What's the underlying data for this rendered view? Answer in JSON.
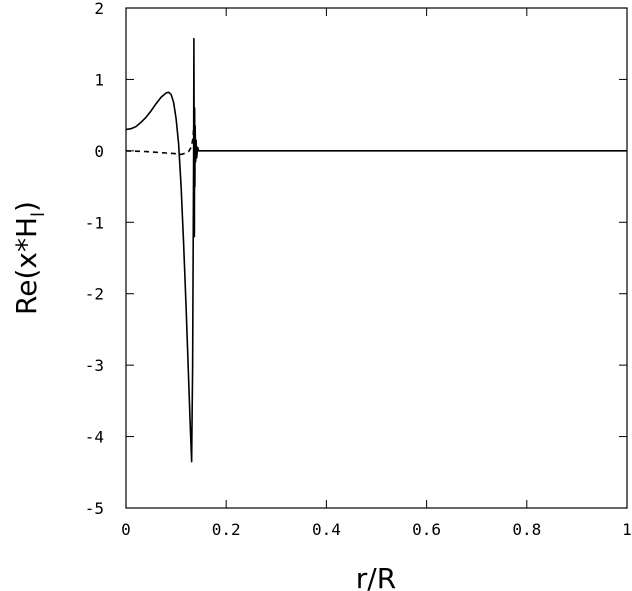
{
  "chart_data": {
    "type": "line",
    "xlabel": "r/R",
    "ylabel": "Re(x*H",
    "ylabel_subscript": "l",
    "ylabel_close": ")",
    "xlim": [
      0,
      1
    ],
    "ylim": [
      -5,
      2
    ],
    "xticks": [
      0,
      0.2,
      0.4,
      0.6,
      0.8,
      1
    ],
    "xtick_labels": [
      "0",
      "0.2",
      "0.4",
      "0.6",
      "0.8",
      "1"
    ],
    "yticks": [
      2,
      1,
      0,
      -1,
      -2,
      -3,
      -4,
      -5
    ],
    "ytick_labels": [
      "2",
      "1",
      "0",
      "-1",
      "-2",
      "-3",
      "-4",
      "-5"
    ],
    "grid": false,
    "series": [
      {
        "style": "solid",
        "color": "#000000",
        "x": [
          0,
          0.01,
          0.02,
          0.03,
          0.04,
          0.05,
          0.06,
          0.07,
          0.08,
          0.085,
          0.09,
          0.095,
          0.1,
          0.105,
          0.11,
          0.115,
          0.12,
          0.125,
          0.128,
          0.131,
          0.133,
          0.135,
          0.1355,
          0.1365,
          0.137,
          0.1375,
          0.138,
          0.139,
          0.14,
          0.141,
          0.143,
          0.145,
          0.15,
          0.2,
          0.4,
          0.6,
          0.8,
          1
        ],
        "y": [
          0.3,
          0.31,
          0.34,
          0.4,
          0.47,
          0.56,
          0.66,
          0.75,
          0.81,
          0.82,
          0.79,
          0.68,
          0.45,
          0.1,
          -0.5,
          -1.3,
          -2.2,
          -3.2,
          -3.8,
          -4.35,
          -3.0,
          0.0,
          1.57,
          -1.2,
          0.6,
          -0.5,
          0.35,
          -0.15,
          0.15,
          -0.1,
          0.05,
          0.0,
          0.0,
          0.0,
          0.0,
          0.0,
          0.0,
          0.0
        ]
      },
      {
        "style": "dashed",
        "color": "#000000",
        "x": [
          0,
          0.02,
          0.04,
          0.06,
          0.08,
          0.1,
          0.11,
          0.12,
          0.125,
          0.13,
          0.133,
          0.135
        ],
        "y": [
          0.0,
          -0.005,
          -0.01,
          -0.02,
          -0.03,
          -0.04,
          -0.05,
          -0.03,
          -0.01,
          0.05,
          0.15,
          0.3
        ]
      }
    ]
  }
}
